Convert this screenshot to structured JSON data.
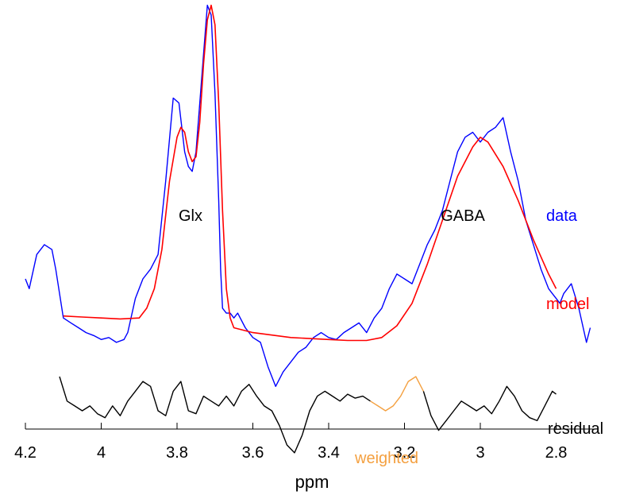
{
  "colors": {
    "data": "#0000ff",
    "model": "#ff0000",
    "residual": "#000000",
    "weighted": "#f4a040",
    "axis": "#000000"
  },
  "chart_data": {
    "type": "line",
    "xlabel": "ppm",
    "ylabel": "",
    "x_reversed": true,
    "xlim": [
      4.2,
      2.7
    ],
    "ylim": [
      -1.6,
      2.8
    ],
    "y_axis_visible": false,
    "grid": false,
    "ticks": [
      "4.2",
      "4",
      "3.8",
      "3.6",
      "3.4",
      "3.2",
      "3",
      "2.8"
    ],
    "tick_values": [
      4.2,
      4.0,
      3.8,
      3.6,
      3.4,
      3.2,
      3.0,
      2.8
    ],
    "annotations": [
      {
        "name": "peak-label-glx",
        "text": "Glx",
        "color": "#000000"
      },
      {
        "name": "peak-label-gaba",
        "text": "GABA",
        "color": "#000000"
      },
      {
        "name": "legend-data",
        "text": "data",
        "color": "#0000ff"
      },
      {
        "name": "legend-model",
        "text": "model",
        "color": "#ff0000"
      },
      {
        "name": "legend-residual",
        "text": "residual",
        "color": "#000000"
      },
      {
        "name": "legend-weighted",
        "text": "weighted",
        "color": "#f4a040"
      }
    ],
    "series": [
      {
        "name": "data",
        "color": "#0000ff",
        "x": [
          4.2,
          4.19,
          4.17,
          4.15,
          4.13,
          4.12,
          4.1,
          4.08,
          4.06,
          4.04,
          4.02,
          4.0,
          3.98,
          3.96,
          3.94,
          3.93,
          3.91,
          3.89,
          3.87,
          3.85,
          3.83,
          3.81,
          3.795,
          3.78,
          3.77,
          3.76,
          3.75,
          3.73,
          3.72,
          3.71,
          3.7,
          3.69,
          3.685,
          3.68,
          3.67,
          3.66,
          3.65,
          3.64,
          3.62,
          3.6,
          3.58,
          3.56,
          3.54,
          3.52,
          3.5,
          3.48,
          3.46,
          3.44,
          3.42,
          3.4,
          3.38,
          3.36,
          3.34,
          3.32,
          3.3,
          3.28,
          3.26,
          3.24,
          3.22,
          3.2,
          3.18,
          3.16,
          3.14,
          3.12,
          3.1,
          3.08,
          3.06,
          3.04,
          3.02,
          3.0,
          2.98,
          2.96,
          2.94,
          2.92,
          2.9,
          2.88,
          2.86,
          2.84,
          2.82,
          2.81,
          2.8,
          2.79,
          2.78,
          2.76,
          2.74,
          2.72,
          2.71
        ],
        "y": [
          0.0,
          -0.1,
          0.25,
          0.35,
          0.3,
          0.1,
          -0.4,
          -0.45,
          -0.5,
          -0.55,
          -0.58,
          -0.62,
          -0.6,
          -0.65,
          -0.62,
          -0.55,
          -0.2,
          0.0,
          0.1,
          0.25,
          1.0,
          1.85,
          1.8,
          1.3,
          1.15,
          1.1,
          1.3,
          2.3,
          2.8,
          2.7,
          1.9,
          0.8,
          0.1,
          -0.3,
          -0.35,
          -0.35,
          -0.4,
          -0.35,
          -0.5,
          -0.6,
          -0.65,
          -0.9,
          -1.1,
          -0.95,
          -0.85,
          -0.75,
          -0.7,
          -0.6,
          -0.55,
          -0.6,
          -0.62,
          -0.55,
          -0.5,
          -0.45,
          -0.55,
          -0.4,
          -0.3,
          -0.1,
          0.05,
          0.0,
          -0.05,
          0.15,
          0.35,
          0.5,
          0.7,
          1.0,
          1.3,
          1.45,
          1.5,
          1.4,
          1.5,
          1.55,
          1.65,
          1.3,
          1.0,
          0.6,
          0.35,
          0.1,
          -0.1,
          -0.15,
          -0.2,
          -0.25,
          -0.15,
          -0.05,
          -0.3,
          -0.65,
          -0.5
        ]
      },
      {
        "name": "model",
        "color": "#ff0000",
        "x": [
          4.1,
          4.05,
          4.0,
          3.95,
          3.9,
          3.88,
          3.86,
          3.84,
          3.82,
          3.8,
          3.79,
          3.78,
          3.77,
          3.76,
          3.75,
          3.74,
          3.73,
          3.72,
          3.71,
          3.7,
          3.69,
          3.68,
          3.67,
          3.66,
          3.65,
          3.6,
          3.5,
          3.4,
          3.35,
          3.3,
          3.26,
          3.22,
          3.18,
          3.14,
          3.1,
          3.06,
          3.02,
          3.0,
          2.98,
          2.94,
          2.9,
          2.86,
          2.82,
          2.8
        ],
        "y": [
          -0.38,
          -0.39,
          -0.4,
          -0.41,
          -0.4,
          -0.3,
          -0.1,
          0.3,
          1.0,
          1.45,
          1.55,
          1.5,
          1.3,
          1.2,
          1.25,
          1.6,
          2.2,
          2.65,
          2.8,
          2.6,
          1.8,
          0.7,
          -0.1,
          -0.4,
          -0.5,
          -0.55,
          -0.6,
          -0.62,
          -0.63,
          -0.63,
          -0.6,
          -0.48,
          -0.25,
          0.15,
          0.6,
          1.05,
          1.35,
          1.45,
          1.4,
          1.15,
          0.8,
          0.4,
          0.05,
          -0.1
        ]
      },
      {
        "name": "residual",
        "color": "#000000",
        "x": [
          4.11,
          4.09,
          4.07,
          4.05,
          4.03,
          4.01,
          3.99,
          3.97,
          3.95,
          3.93,
          3.91,
          3.89,
          3.87,
          3.85,
          3.83,
          3.81,
          3.79,
          3.77,
          3.75,
          3.73,
          3.71,
          3.69,
          3.67,
          3.65,
          3.63,
          3.61,
          3.59,
          3.57,
          3.55,
          3.53,
          3.51,
          3.49,
          3.47,
          3.45,
          3.43,
          3.41,
          3.39,
          3.37,
          3.35,
          3.33,
          3.31,
          3.29
        ],
        "y": [
          -1.0,
          -1.25,
          -1.3,
          -1.35,
          -1.3,
          -1.38,
          -1.42,
          -1.3,
          -1.4,
          -1.25,
          -1.15,
          -1.05,
          -1.1,
          -1.35,
          -1.4,
          -1.15,
          -1.05,
          -1.35,
          -1.38,
          -1.2,
          -1.25,
          -1.3,
          -1.2,
          -1.3,
          -1.15,
          -1.08,
          -1.2,
          -1.3,
          -1.35,
          -1.5,
          -1.7,
          -1.78,
          -1.6,
          -1.35,
          -1.2,
          -1.15,
          -1.2,
          -1.25,
          -1.18,
          -1.22,
          -1.2,
          -1.25
        ]
      },
      {
        "name": "weighted",
        "color": "#f4a040",
        "x": [
          3.29,
          3.27,
          3.25,
          3.23,
          3.21,
          3.19,
          3.17,
          3.15
        ],
        "y": [
          -1.25,
          -1.3,
          -1.35,
          -1.3,
          -1.2,
          -1.05,
          -1.0,
          -1.15
        ]
      },
      {
        "name": "residual-tail",
        "color": "#000000",
        "x": [
          3.15,
          3.13,
          3.11,
          3.09,
          3.07,
          3.05,
          3.03,
          3.01,
          2.99,
          2.97,
          2.95,
          2.93,
          2.91,
          2.89,
          2.87,
          2.85,
          2.83,
          2.81,
          2.8
        ],
        "y": [
          -1.15,
          -1.4,
          -1.55,
          -1.45,
          -1.35,
          -1.25,
          -1.3,
          -1.35,
          -1.3,
          -1.38,
          -1.25,
          -1.1,
          -1.2,
          -1.35,
          -1.42,
          -1.45,
          -1.3,
          -1.15,
          -1.18
        ]
      }
    ]
  }
}
